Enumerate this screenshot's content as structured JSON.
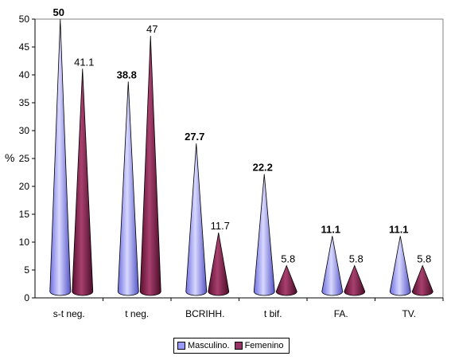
{
  "chart_data": {
    "type": "bar",
    "bar_shape": "cone",
    "categories": [
      "s-t neg.",
      "t neg.",
      "BCRIHH.",
      "t bif.",
      "FA.",
      "TV."
    ],
    "series": [
      {
        "name": "Masculino.",
        "values": [
          50,
          38.8,
          27.7,
          22.2,
          11.1,
          11.1
        ],
        "labels": [
          "50",
          "38.8",
          "27.7",
          "22.2",
          "11.1",
          "11.1"
        ],
        "color": "#9999ff"
      },
      {
        "name": "Femenino",
        "values": [
          41.1,
          47,
          11.7,
          5.8,
          5.8,
          5.8
        ],
        "labels": [
          "41.1",
          "47",
          "11.7",
          "5.8",
          "5.8",
          "5.8"
        ],
        "color": "#993366"
      }
    ],
    "ylabel": "%",
    "ylim": [
      0,
      50
    ],
    "yticks": [
      "0",
      "5",
      "10",
      "15",
      "20",
      "25",
      "30",
      "35",
      "40",
      "45",
      "50"
    ],
    "legend_position": "bottom",
    "grid": false
  }
}
